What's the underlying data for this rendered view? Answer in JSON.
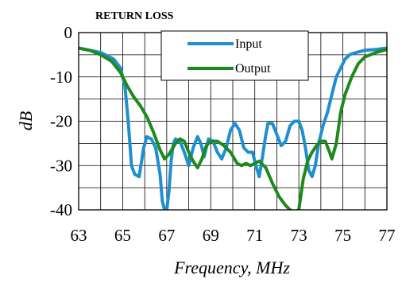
{
  "chart_data": {
    "type": "line",
    "title": "RETURN LOSS",
    "xlabel": "Frequency, MHz",
    "ylabel": "dB",
    "xlim": [
      63,
      77
    ],
    "ylim": [
      -40,
      0
    ],
    "xticks": [
      63,
      65,
      67,
      69,
      71,
      73,
      75,
      77
    ],
    "yticks": [
      0,
      -10,
      -20,
      -30,
      -40
    ],
    "grid": true,
    "legend": "top-center",
    "series": [
      {
        "name": "Input",
        "color": "#1f8fd2",
        "x": [
          63,
          64,
          64.6,
          64.9,
          65.1,
          65.25,
          65.4,
          65.55,
          65.75,
          65.95,
          66.1,
          66.3,
          66.5,
          66.7,
          66.8,
          66.9,
          67.0,
          67.1,
          67.2,
          67.3,
          67.4,
          67.6,
          67.8,
          68.0,
          68.2,
          68.4,
          68.55,
          68.7,
          68.9,
          69.1,
          69.3,
          69.5,
          69.7,
          69.9,
          70.1,
          70.3,
          70.5,
          70.7,
          70.9,
          71.05,
          71.2,
          71.35,
          71.5,
          71.6,
          71.8,
          72.0,
          72.2,
          72.4,
          72.6,
          72.8,
          73.0,
          73.15,
          73.3,
          73.45,
          73.6,
          73.75,
          73.9,
          74.1,
          74.3,
          74.5,
          74.7,
          74.9,
          75.1,
          75.3,
          75.6,
          76.0,
          76.5,
          77
        ],
        "y": [
          -3.5,
          -4.5,
          -6,
          -8,
          -12,
          -20,
          -30,
          -32,
          -32.5,
          -26,
          -23.5,
          -24,
          -26,
          -32,
          -38,
          -40,
          -40,
          -36,
          -29,
          -25,
          -24,
          -24.5,
          -27,
          -30,
          -26,
          -23.5,
          -25,
          -28,
          -24,
          -24.5,
          -27,
          -28.5,
          -26,
          -22,
          -20.5,
          -22,
          -26,
          -27,
          -27,
          -30,
          -32.5,
          -28,
          -23,
          -20.5,
          -20.5,
          -23,
          -25.5,
          -24.5,
          -21,
          -20,
          -20,
          -22,
          -26,
          -31,
          -32.5,
          -30,
          -25,
          -21,
          -18,
          -14,
          -10,
          -8,
          -6,
          -5,
          -4.5,
          -4,
          -3.8,
          -3.5
        ]
      },
      {
        "name": "Output",
        "color": "#1e8a1e",
        "x": [
          63,
          63.5,
          64,
          64.5,
          64.9,
          65.2,
          65.5,
          65.8,
          66.1,
          66.4,
          66.7,
          66.9,
          67.1,
          67.4,
          67.6,
          67.8,
          68.0,
          68.2,
          68.4,
          68.6,
          68.8,
          69.0,
          69.3,
          69.6,
          69.9,
          70.2,
          70.4,
          70.6,
          70.8,
          71.0,
          71.2,
          71.5,
          71.8,
          72.1,
          72.4,
          72.6,
          72.8,
          73.0,
          73.2,
          73.4,
          73.6,
          73.8,
          74.0,
          74.2,
          74.4,
          74.5,
          74.7,
          74.9,
          75.1,
          75.4,
          75.7,
          76.0,
          76.5,
          77
        ],
        "y": [
          -3.5,
          -4,
          -5,
          -6.5,
          -9,
          -12,
          -14.5,
          -16.5,
          -19,
          -22.5,
          -26.5,
          -28.5,
          -27.5,
          -25,
          -24,
          -24.5,
          -27,
          -29,
          -30.5,
          -28.5,
          -25.5,
          -24.5,
          -24.5,
          -25.5,
          -27,
          -29.5,
          -30,
          -29.5,
          -30,
          -29.5,
          -29,
          -30.5,
          -34,
          -37,
          -39,
          -40,
          -40.5,
          -40,
          -33,
          -29,
          -27,
          -25.5,
          -24.5,
          -24.5,
          -27,
          -28.5,
          -25,
          -18,
          -14,
          -10,
          -7,
          -5.5,
          -4.5,
          -3.8
        ]
      }
    ]
  }
}
